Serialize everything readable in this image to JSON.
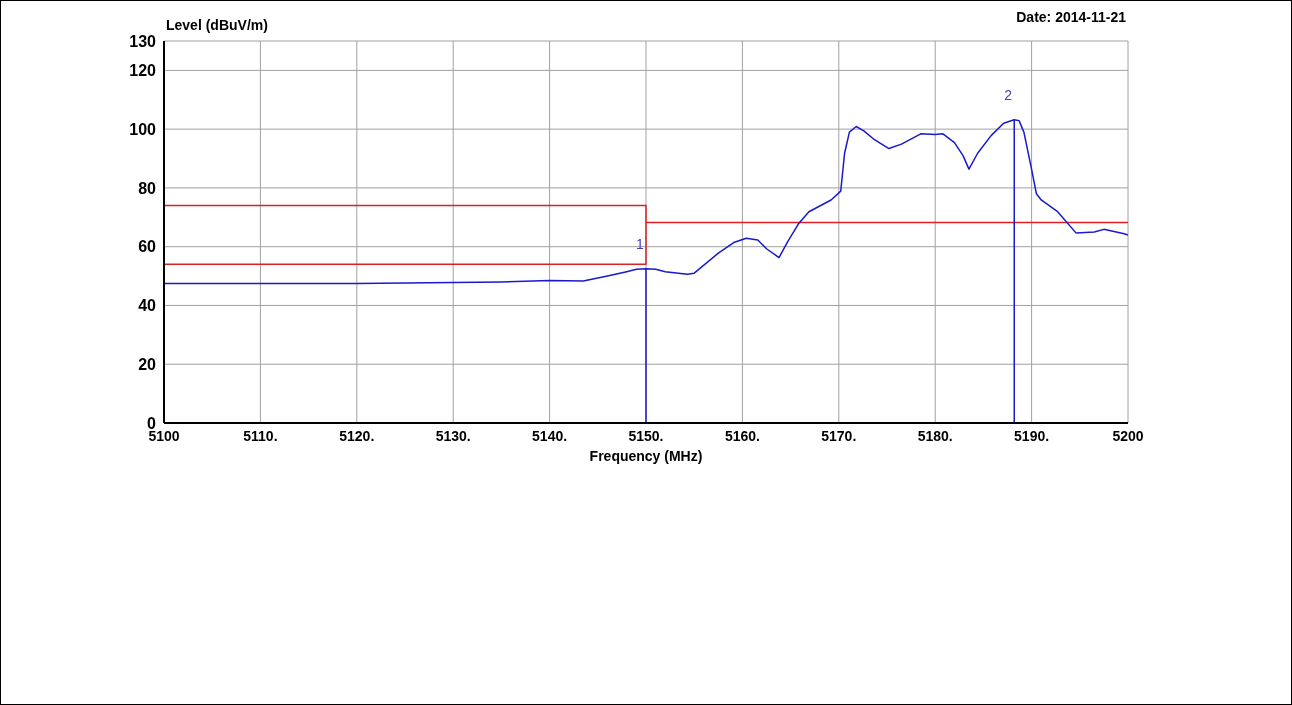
{
  "chart_data": {
    "type": "line",
    "xlabel": "Frequency (MHz)",
    "ylabel": "Level (dBuV/m)",
    "annotations": [
      "Date: 2014-11-21",
      {
        "text": "1",
        "x": 5150,
        "y": 52.5
      },
      {
        "text": "2",
        "x": 5188.2,
        "y": 103.2
      }
    ],
    "xlim": [
      5100,
      5200
    ],
    "ylim": [
      0,
      130
    ],
    "xticks": [
      5100,
      {
        "value": 5110,
        "label": "5110."
      },
      {
        "value": 5120,
        "label": "5120."
      },
      {
        "value": 5130,
        "label": "5130."
      },
      {
        "value": 5140,
        "label": "5140."
      },
      {
        "value": 5150,
        "label": "5150."
      },
      {
        "value": 5160,
        "label": "5160."
      },
      {
        "value": 5170,
        "label": "5170."
      },
      {
        "value": 5180,
        "label": "5180."
      },
      {
        "value": 5190,
        "label": "5190."
      },
      5200
    ],
    "yticks": [
      0,
      20,
      40,
      60,
      80,
      100,
      120,
      130
    ],
    "grid": true,
    "marker": "none",
    "line_style": "solid",
    "series": [
      {
        "color": "#e02020",
        "x": [
          5100,
          5150,
          5150,
          5200
        ],
        "values": [
          74,
          74,
          68.2,
          68.2
        ]
      },
      {
        "color": "#e02020",
        "x": [
          5100,
          5150,
          5150
        ],
        "values": [
          54,
          54,
          68.2
        ]
      },
      {
        "color": "#1a1acc",
        "x": [
          5100,
          5110,
          5120,
          5130,
          5135,
          5140,
          5143.5,
          5146,
          5148,
          5149,
          5150,
          5151,
          5152,
          5154.3,
          5155,
          5157.5,
          5159.1,
          5160.4,
          5161.6,
          5162.5,
          5163.8,
          5164.7,
          5165.8,
          5166.9,
          5169.2,
          5170.2,
          5170.6,
          5171.1,
          5171.8,
          5172.6,
          5173.7,
          5175.2,
          5176.5,
          5178.5,
          5180,
          5180.8,
          5182,
          5182.9,
          5183.5,
          5184.4,
          5185.8,
          5187.1,
          5188.2,
          5188.7,
          5189.2,
          5189.9,
          5190.5,
          5191,
          5192.7,
          5194.6,
          5196.5,
          5197.5,
          5199.6,
          5200
        ],
        "values": [
          47.5,
          47.5,
          47.5,
          47.8,
          48,
          48.5,
          48.3,
          50,
          51.5,
          52.3,
          52.5,
          52.3,
          51.5,
          50.6,
          51,
          57.8,
          61.4,
          62.9,
          62.3,
          59.3,
          56.3,
          61.7,
          67.7,
          71.9,
          75.9,
          78.9,
          91.8,
          99,
          100.9,
          99.4,
          96.4,
          93.4,
          94.9,
          98.4,
          98.2,
          98.4,
          95.4,
          90.9,
          86.4,
          91.8,
          97.8,
          102,
          103.2,
          102.9,
          99,
          87.9,
          78,
          75.9,
          71.9,
          64.7,
          65,
          65.9,
          64.4,
          64
        ]
      }
    ]
  }
}
